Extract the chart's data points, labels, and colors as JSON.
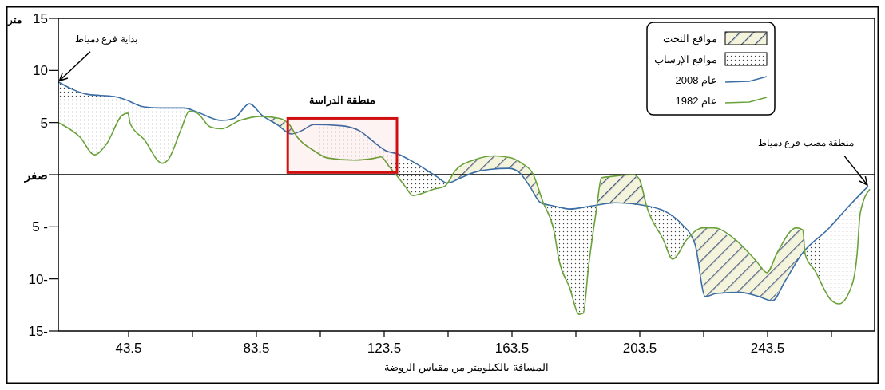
{
  "chart_data": {
    "type": "line",
    "xlabel": "المسافة بالكيلومتر من مقياس الروضة",
    "ylabel": "متر",
    "xlim": [
      21.5,
      277
    ],
    "xticks": [
      43.5,
      {
        "value": 63.5,
        "label": null
      },
      83.5,
      {
        "value": 103.5,
        "label": null
      },
      123.5,
      {
        "value": 143.5,
        "label": null
      },
      163.5,
      {
        "value": 183.5,
        "label": null
      },
      203.5,
      {
        "value": 223.5,
        "label": null
      },
      243.5,
      {
        "value": 263.5,
        "label": null
      }
    ],
    "ylim": [
      -15,
      15
    ],
    "yticks": [
      {
        "value": -15,
        "label": "15-"
      },
      {
        "value": -10,
        "label": "10-"
      },
      {
        "value": -5,
        "label": "5 -"
      },
      {
        "value": 0,
        "label": "صفر"
      },
      5,
      10,
      15
    ],
    "legend": "top right",
    "grid": false,
    "ref_lines": [
      {
        "axis": "y",
        "value": 0
      }
    ],
    "bands": [
      {
        "axis": "x",
        "from": 93.3,
        "to": 127.5,
        "label": "منطقة الدراسة",
        "color": "#d01010"
      }
    ],
    "annotations": [
      "مواقع النحت",
      "مواقع الإرساب",
      {
        "text": "بداية فرع دمياط",
        "x": 21.5,
        "y": 8.9
      },
      {
        "text": "منطقة مصب فرع دمياط",
        "x": 275,
        "y": -1.1
      }
    ],
    "series": [
      {
        "name": "عام 2008",
        "color": "#3a6ea5",
        "x": [
          21.5,
          30.8,
          39,
          42.5,
          48.3,
          53.3,
          60.8,
          65,
          72.5,
          76.5,
          81.3,
          85.3,
          90,
          94.5,
          97.5,
          101.5,
          110,
          115.8,
          120.8,
          124,
          127.5,
          133.3,
          140,
          143.3,
          147.5,
          151.5,
          156.5,
          162.5,
          165.8,
          169,
          172.5,
          176.5,
          181.5,
          188.3,
          195.8,
          205.8,
          212.5,
          216.5,
          220.8,
          224,
          227.5,
          235,
          240.8,
          245,
          249,
          254,
          262.5,
          269,
          275
        ],
        "values": [
          8.9,
          7.7,
          7.5,
          7.2,
          6.5,
          6.4,
          6.4,
          6.0,
          5.2,
          5.4,
          6.8,
          5.7,
          4.8,
          3.9,
          4.2,
          4.8,
          4.7,
          4.2,
          3.0,
          2.3,
          2.0,
          1.1,
          -0.2,
          -0.8,
          -0.3,
          0.2,
          0.5,
          0.6,
          0.2,
          -1.1,
          -2.7,
          -3.0,
          -3.3,
          -3.0,
          -2.7,
          -3.0,
          -3.7,
          -4.7,
          -6.7,
          -11.7,
          -11.4,
          -11.3,
          -11.7,
          -12.1,
          -10.2,
          -7.7,
          -5.2,
          -3.0,
          -1.1
        ]
      },
      {
        "name": "عام 1982",
        "color": "#6aa23a",
        "x": [
          21.5,
          28.3,
          32.8,
          36.5,
          41.5,
          43.3,
          44,
          48.3,
          54,
          55.8,
          60,
          62.5,
          65,
          69,
          72.5,
          78.3,
          85,
          90.8,
          93.8,
          96.3,
          101.5,
          105.8,
          114,
          120.8,
          122.5,
          125,
          129,
          130,
          132.5,
          139,
          142.5,
          145.8,
          151.5,
          158.3,
          163.3,
          166.5,
          170,
          173.3,
          176.5,
          178.3,
          181.5,
          184.5,
          185.8,
          187.5,
          190,
          191.5,
          194,
          201.5,
          203.3,
          205.8,
          210.8,
          213.8,
          218.3,
          223.3,
          226.5,
          233.3,
          240,
          243.3,
          246.5,
          252.5,
          254.5,
          255.3,
          258.3,
          263.3,
          265.8,
          270,
          271.5,
          272.5,
          275.5
        ],
        "values": [
          5.0,
          3.6,
          1.9,
          2.9,
          5.7,
          5.9,
          4.9,
          3.4,
          1.1,
          1.4,
          4.4,
          6.1,
          5.9,
          4.6,
          4.4,
          5.2,
          5.6,
          5.4,
          4.8,
          3.6,
          2.3,
          1.6,
          1.4,
          1.6,
          1.7,
          0.8,
          -0.7,
          -1.1,
          -2.0,
          -1.4,
          -1.1,
          0.4,
          1.4,
          1.8,
          1.6,
          1.1,
          0.1,
          -2.7,
          -5.2,
          -8.3,
          -10.8,
          -13.4,
          -13.3,
          -8.7,
          -3.2,
          -0.3,
          -0.2,
          0,
          -0.4,
          -3.2,
          -6.2,
          -8.1,
          -6.2,
          -5.1,
          -5.1,
          -6.2,
          -8.3,
          -9.4,
          -7.5,
          -5.1,
          -5.3,
          -7.7,
          -9.2,
          -12.0,
          -12.4,
          -10.5,
          -7.7,
          -3.7,
          -1.4
        ]
      }
    ]
  }
}
